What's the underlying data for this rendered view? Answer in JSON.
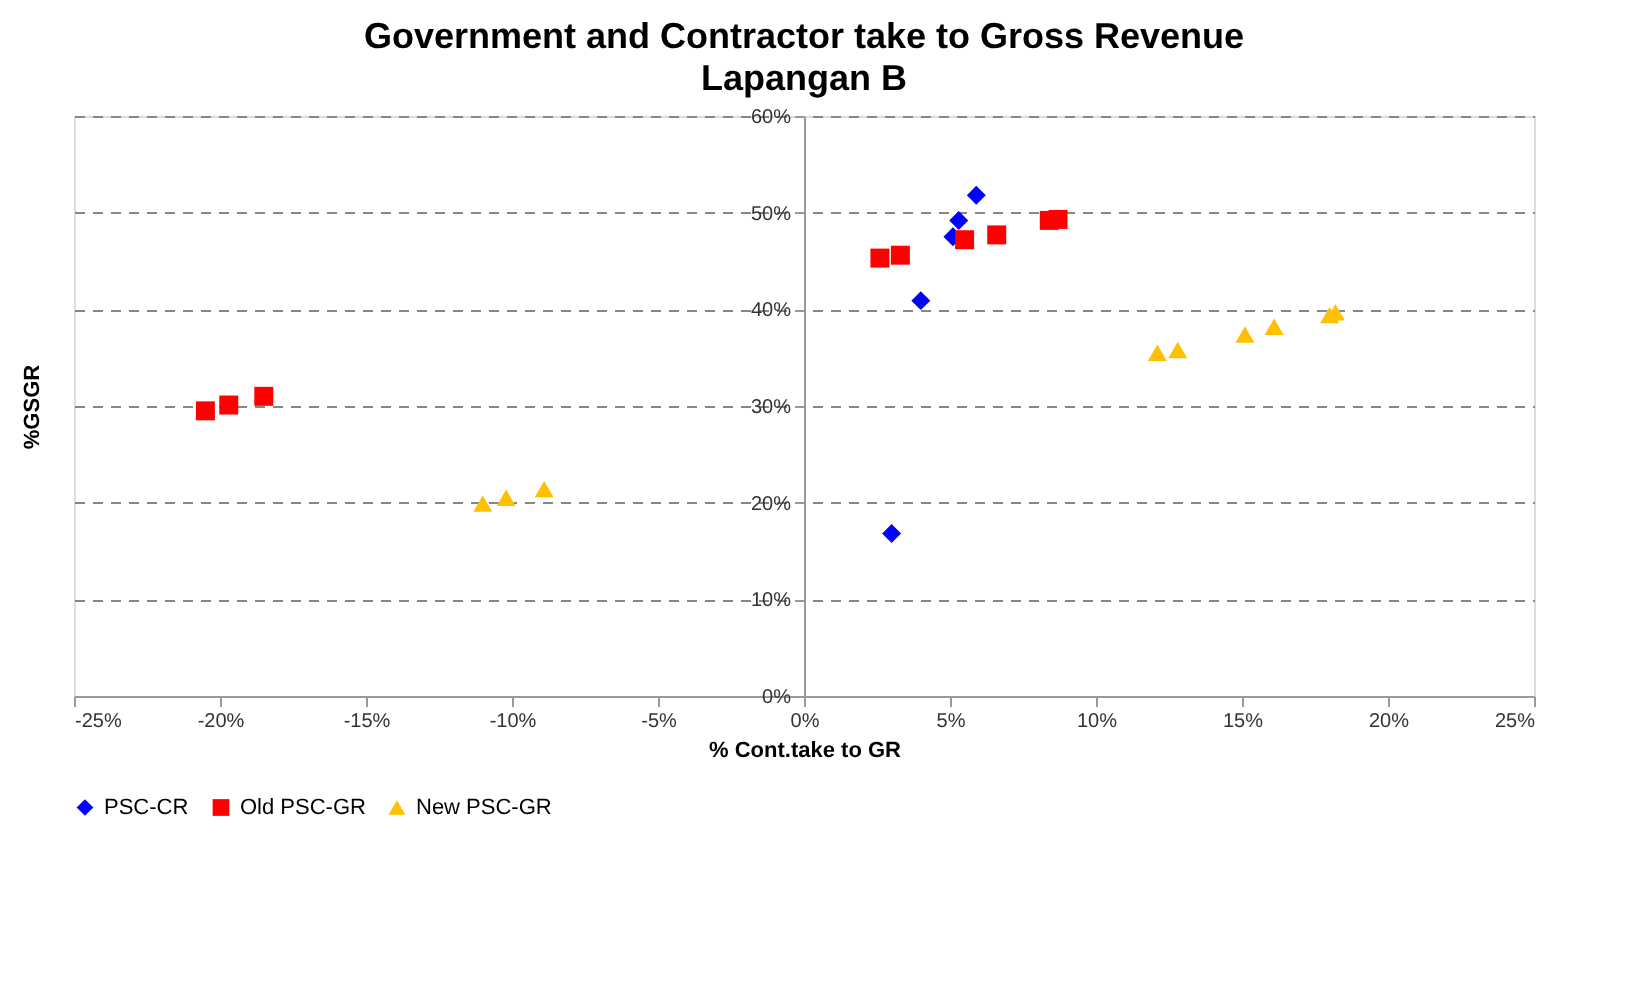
{
  "chart_data": {
    "type": "scatter",
    "title": "Government and Contractor take to Gross Revenue",
    "subtitle": "Lapangan B",
    "xlabel": "% Cont.take to GR",
    "ylabel": "%GSGR",
    "xlim": [
      -25,
      25
    ],
    "ylim": [
      0,
      60
    ],
    "xticks": [
      {
        "value": -25,
        "label": "-25%"
      },
      {
        "value": -20,
        "label": "-20%"
      },
      {
        "value": -15,
        "label": "-15%"
      },
      {
        "value": -10,
        "label": "-10%"
      },
      {
        "value": -5,
        "label": "-5%"
      },
      {
        "value": 0,
        "label": "0%"
      },
      {
        "value": 5,
        "label": "5%"
      },
      {
        "value": 10,
        "label": "10%"
      },
      {
        "value": 15,
        "label": "15%"
      },
      {
        "value": 20,
        "label": "20%"
      },
      {
        "value": 25,
        "label": "25%"
      }
    ],
    "yticks": [
      {
        "value": 0,
        "label": "0%"
      },
      {
        "value": 10,
        "label": "10%"
      },
      {
        "value": 20,
        "label": "20%"
      },
      {
        "value": 30,
        "label": "30%"
      },
      {
        "value": 40,
        "label": "40%"
      },
      {
        "value": 50,
        "label": "50%"
      },
      {
        "value": 60,
        "label": "60%"
      }
    ],
    "grid": "y",
    "legend": "bottom",
    "series": [
      {
        "name": "PSC-CR",
        "color": "#0000ff",
        "marker": "diamond",
        "x": [
          5.9,
          5.3,
          5.1,
          4.0,
          3.0
        ],
        "values": [
          51.8,
          49.2,
          47.5,
          40.9,
          16.8
        ]
      },
      {
        "name": "Old PSC-GR",
        "color": "#ff0000",
        "marker": "square",
        "x": [
          2.6,
          3.3,
          5.5,
          6.6,
          8.4,
          8.7,
          -20.5,
          -19.7,
          -18.5
        ],
        "values": [
          45.3,
          45.6,
          47.2,
          47.7,
          49.2,
          49.3,
          29.5,
          30.1,
          31.0
        ]
      },
      {
        "name": "New PSC-GR",
        "color": "#ffc000",
        "marker": "triangle",
        "x": [
          12.1,
          12.8,
          15.1,
          16.1,
          18.0,
          18.2,
          -11.0,
          -10.2,
          -8.9
        ],
        "values": [
          35.5,
          35.8,
          37.4,
          38.2,
          39.4,
          39.7,
          19.9,
          20.5,
          21.4
        ]
      }
    ]
  }
}
